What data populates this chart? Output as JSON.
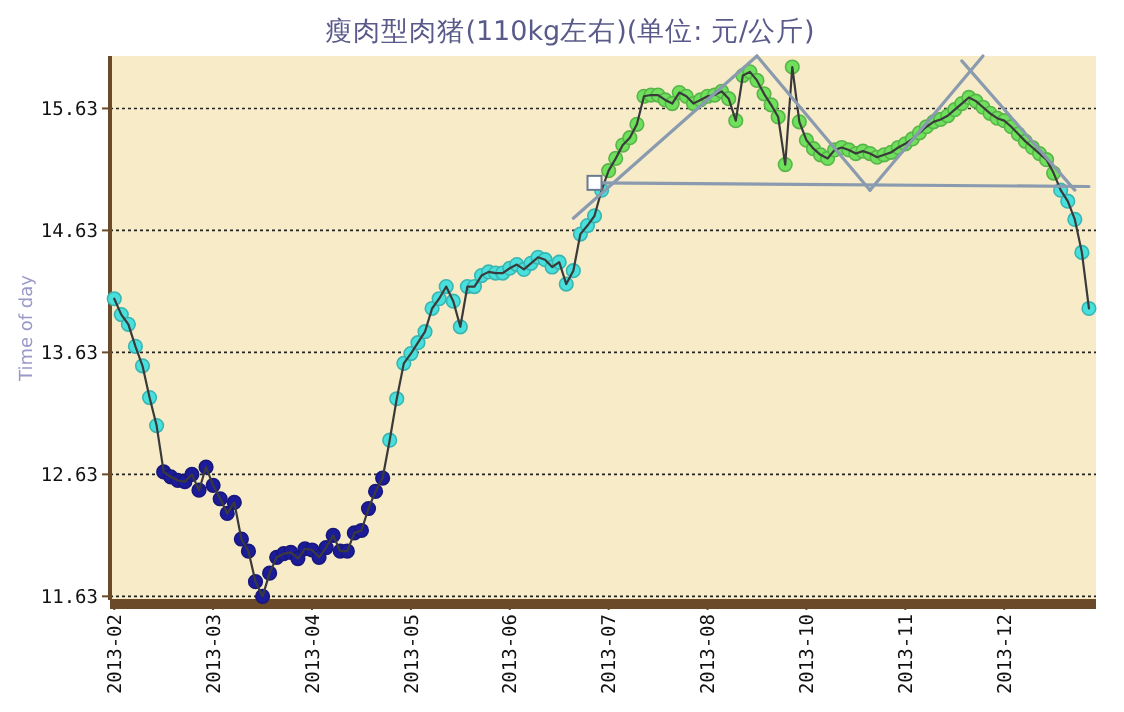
{
  "chart_data": {
    "type": "line",
    "title": "瘦肉型肉猪(110kg左右)(单位: 元/公斤)",
    "ylabel": "Time of day",
    "categories": [
      "2013-02",
      null,
      null,
      null,
      null,
      null,
      null,
      null,
      null,
      null,
      null,
      null,
      null,
      null,
      "2013-03",
      null,
      null,
      null,
      null,
      null,
      null,
      null,
      null,
      null,
      null,
      null,
      null,
      null,
      "2013-04",
      null,
      null,
      null,
      null,
      null,
      null,
      null,
      null,
      null,
      null,
      null,
      null,
      null,
      "2013-05",
      null,
      null,
      null,
      null,
      null,
      null,
      null,
      null,
      null,
      null,
      null,
      null,
      null,
      "2013-06",
      null,
      null,
      null,
      null,
      null,
      null,
      null,
      null,
      null,
      null,
      null,
      null,
      null,
      "2013-07",
      null,
      null,
      null,
      null,
      null,
      null,
      null,
      null,
      null,
      null,
      null,
      null,
      null,
      "2013-08",
      null,
      null,
      null,
      null,
      null,
      null,
      null,
      null,
      null,
      null,
      null,
      null,
      null,
      "2013-10",
      null,
      null,
      null,
      null,
      null,
      null,
      null,
      null,
      null,
      null,
      null,
      null,
      null,
      "2013-11",
      null,
      null,
      null,
      null,
      null,
      null,
      null,
      null,
      null,
      null,
      null,
      null,
      null,
      "2013-12",
      null,
      null,
      null,
      null,
      null,
      null,
      null,
      null,
      null,
      null,
      null,
      null
    ],
    "ylim": [
      11.6,
      16.06
    ],
    "yticks": [
      11.63,
      12.63,
      13.63,
      14.63,
      15.63
    ],
    "grid": "y",
    "series": [
      {
        "color": "#3a3a3a",
        "marker": "circle",
        "values": [
          14.07,
          13.94,
          13.86,
          13.68,
          13.52,
          13.26,
          13.03,
          12.65,
          12.61,
          12.58,
          12.57,
          12.63,
          12.5,
          12.69,
          12.54,
          12.43,
          12.31,
          12.4,
          12.1,
          12.0,
          11.75,
          11.63,
          11.82,
          11.95,
          11.98,
          11.99,
          11.94,
          12.02,
          12.01,
          11.95,
          12.03,
          12.13,
          12.0,
          12.0,
          12.15,
          12.17,
          12.35,
          12.49,
          12.6,
          12.91,
          13.25,
          13.54,
          13.62,
          13.71,
          13.8,
          13.99,
          14.07,
          14.17,
          14.05,
          13.84,
          14.17,
          14.17,
          14.26,
          14.29,
          14.28,
          14.28,
          14.32,
          14.35,
          14.31,
          14.36,
          14.41,
          14.39,
          14.33,
          14.37,
          14.19,
          14.3,
          14.6,
          14.67,
          14.75,
          14.96,
          15.12,
          15.22,
          15.33,
          15.39,
          15.5,
          15.73,
          15.74,
          15.74,
          15.7,
          15.67,
          15.76,
          15.73,
          15.67,
          15.7,
          15.73,
          15.74,
          15.77,
          15.71,
          15.53,
          15.9,
          15.93,
          15.86,
          15.75,
          15.66,
          15.56,
          15.17,
          15.97,
          15.52,
          15.37,
          15.3,
          15.25,
          15.22,
          15.29,
          15.31,
          15.29,
          15.26,
          15.28,
          15.26,
          15.23,
          15.25,
          15.27,
          15.31,
          15.34,
          15.38,
          15.43,
          15.48,
          15.52,
          15.54,
          15.57,
          15.62,
          15.67,
          15.72,
          15.69,
          15.64,
          15.59,
          15.55,
          15.53,
          15.48,
          15.42,
          15.36,
          15.31,
          15.26,
          15.21,
          15.1,
          14.96,
          14.87,
          14.72,
          14.45,
          13.99
        ],
        "colors": [
          "#48e0dc",
          "#48e0dc",
          "#48e0dc",
          "#48e0dc",
          "#48e0dc",
          "#48e0dc",
          "#48e0dc",
          "#1c1c9a",
          "#1c1c9a",
          "#1c1c9a",
          "#1c1c9a",
          "#1c1c9a",
          "#1c1c9a",
          "#1c1c9a",
          "#1c1c9a",
          "#1c1c9a",
          "#1c1c9a",
          "#1c1c9a",
          "#1c1c9a",
          "#1c1c9a",
          "#1c1c9a",
          "#1c1c9a",
          "#1c1c9a",
          "#1c1c9a",
          "#1c1c9a",
          "#1c1c9a",
          "#1c1c9a",
          "#1c1c9a",
          "#1c1c9a",
          "#1c1c9a",
          "#1c1c9a",
          "#1c1c9a",
          "#1c1c9a",
          "#1c1c9a",
          "#1c1c9a",
          "#1c1c9a",
          "#1c1c9a",
          "#1c1c9a",
          "#1c1c9a",
          "#48e0dc",
          "#48e0dc",
          "#48e0dc",
          "#48e0dc",
          "#48e0dc",
          "#48e0dc",
          "#48e0dc",
          "#48e0dc",
          "#48e0dc",
          "#48e0dc",
          "#48e0dc",
          "#48e0dc",
          "#48e0dc",
          "#48e0dc",
          "#48e0dc",
          "#48e0dc",
          "#48e0dc",
          "#48e0dc",
          "#48e0dc",
          "#48e0dc",
          "#48e0dc",
          "#48e0dc",
          "#48e0dc",
          "#48e0dc",
          "#48e0dc",
          "#48e0dc",
          "#48e0dc",
          "#48e0dc",
          "#48e0dc",
          "#48e0dc",
          "#48e0dc",
          "#6ee05c",
          "#6ee05c",
          "#6ee05c",
          "#6ee05c",
          "#6ee05c",
          "#6ee05c",
          "#6ee05c",
          "#6ee05c",
          "#6ee05c",
          "#6ee05c",
          "#6ee05c",
          "#6ee05c",
          "#6ee05c",
          "#6ee05c",
          "#6ee05c",
          "#6ee05c",
          "#6ee05c",
          "#6ee05c",
          "#6ee05c",
          "#6ee05c",
          "#6ee05c",
          "#6ee05c",
          "#6ee05c",
          "#6ee05c",
          "#6ee05c",
          "#6ee05c",
          "#6ee05c",
          "#6ee05c",
          "#6ee05c",
          "#6ee05c",
          "#6ee05c",
          "#6ee05c",
          "#6ee05c",
          "#6ee05c",
          "#6ee05c",
          "#6ee05c",
          "#6ee05c",
          "#6ee05c",
          "#6ee05c",
          "#6ee05c",
          "#6ee05c",
          "#6ee05c",
          "#6ee05c",
          "#6ee05c",
          "#6ee05c",
          "#6ee05c",
          "#6ee05c",
          "#6ee05c",
          "#6ee05c",
          "#6ee05c",
          "#6ee05c",
          "#6ee05c",
          "#6ee05c",
          "#6ee05c",
          "#6ee05c",
          "#6ee05c",
          "#6ee05c",
          "#6ee05c",
          "#6ee05c",
          "#6ee05c",
          "#6ee05c",
          "#6ee05c",
          "#6ee05c",
          "#6ee05c",
          "#48e0dc",
          "#48e0dc",
          "#48e0dc",
          "#48e0dc",
          "#48e0dc"
        ]
      },
      {
        "color": "#8a9bb0",
        "marker": "none",
        "values": [
          null,
          null,
          null,
          null,
          null,
          null,
          null,
          null,
          null,
          null,
          null,
          null,
          null,
          null,
          null,
          null,
          null,
          null,
          null,
          null,
          null,
          null,
          null,
          null,
          null,
          null,
          null,
          null,
          null,
          null,
          null,
          null,
          null,
          null,
          null,
          null,
          null,
          null,
          null,
          null,
          null,
          null,
          null,
          null,
          null,
          null,
          null,
          null,
          null,
          null,
          null,
          null,
          null,
          null,
          null,
          null,
          null,
          null,
          null,
          null,
          null,
          null,
          null,
          null,
          null,
          null,
          null,
          null,
          15.02,
          null,
          null,
          null,
          null,
          null,
          null,
          null,
          null,
          null,
          null,
          null,
          null,
          null,
          null,
          null,
          null,
          null,
          null,
          null,
          null,
          null,
          null,
          null,
          null,
          null,
          null,
          null,
          null,
          null,
          null,
          null,
          null,
          null,
          null,
          null,
          null,
          null,
          null,
          null,
          null,
          null,
          null,
          null,
          null,
          null,
          null,
          null,
          null,
          null,
          null,
          null,
          null,
          null,
          null,
          null,
          null,
          null,
          null,
          null,
          null,
          null,
          null,
          null,
          null,
          null,
          null,
          null,
          null,
          null,
          14.99
        ]
      },
      {
        "color": "#8a9bb0",
        "marker": "none",
        "values": [
          null,
          null,
          null,
          null,
          null,
          null,
          null,
          null,
          null,
          null,
          null,
          null,
          null,
          null,
          null,
          null,
          null,
          null,
          null,
          null,
          null,
          null,
          null,
          null,
          null,
          null,
          null,
          null,
          null,
          null,
          null,
          null,
          null,
          null,
          null,
          null,
          null,
          null,
          null,
          null,
          null,
          null,
          null,
          null,
          null,
          null,
          null,
          null,
          null,
          null,
          null,
          null,
          null,
          null,
          null,
          null,
          null,
          null,
          null,
          null,
          null,
          null,
          null,
          null,
          null,
          14.73,
          null,
          null,
          null,
          null,
          null,
          null,
          null,
          null,
          null,
          null,
          null,
          null,
          null,
          null,
          null,
          null,
          null,
          null,
          null,
          null,
          null,
          null,
          null,
          null,
          null,
          16.06,
          null,
          null,
          null,
          null,
          null,
          null,
          null,
          null,
          null,
          null,
          null,
          null,
          null,
          null,
          null,
          null,
          null,
          null,
          null,
          null,
          null,
          null,
          null,
          null,
          null,
          null,
          null,
          null,
          null,
          null,
          null,
          null,
          null,
          null,
          null,
          null,
          null,
          null,
          null,
          null,
          null,
          null,
          null,
          null,
          null,
          null,
          null
        ]
      },
      {
        "color": "#8a9bb0",
        "marker": "none",
        "values": [
          null,
          null,
          null,
          null,
          null,
          null,
          null,
          null,
          null,
          null,
          null,
          null,
          null,
          null,
          null,
          null,
          null,
          null,
          null,
          null,
          null,
          null,
          null,
          null,
          null,
          null,
          null,
          null,
          null,
          null,
          null,
          null,
          null,
          null,
          null,
          null,
          null,
          null,
          null,
          null,
          null,
          null,
          null,
          null,
          null,
          null,
          null,
          null,
          null,
          null,
          null,
          null,
          null,
          null,
          null,
          null,
          null,
          null,
          null,
          null,
          null,
          null,
          null,
          null,
          null,
          null,
          null,
          null,
          null,
          null,
          null,
          null,
          null,
          null,
          null,
          null,
          null,
          null,
          null,
          null,
          null,
          null,
          null,
          null,
          null,
          null,
          null,
          null,
          null,
          null,
          null,
          16.06,
          null,
          null,
          null,
          null,
          null,
          null,
          null,
          null,
          null,
          null,
          null,
          null,
          null,
          null,
          null,
          14.96,
          null,
          null,
          null,
          null,
          null,
          null,
          null,
          null,
          null,
          null,
          null,
          null,
          null,
          null,
          null,
          null,
          null,
          null,
          null,
          null,
          null,
          null,
          null,
          null,
          null,
          null,
          null,
          null,
          null,
          null,
          null
        ]
      },
      {
        "color": "#8a9bb0",
        "marker": "none",
        "values": [
          null,
          null,
          null,
          null,
          null,
          null,
          null,
          null,
          null,
          null,
          null,
          null,
          null,
          null,
          null,
          null,
          null,
          null,
          null,
          null,
          null,
          null,
          null,
          null,
          null,
          null,
          null,
          null,
          null,
          null,
          null,
          null,
          null,
          null,
          null,
          null,
          null,
          null,
          null,
          null,
          null,
          null,
          null,
          null,
          null,
          null,
          null,
          null,
          null,
          null,
          null,
          null,
          null,
          null,
          null,
          null,
          null,
          null,
          null,
          null,
          null,
          null,
          null,
          null,
          null,
          null,
          null,
          null,
          null,
          null,
          null,
          null,
          null,
          null,
          null,
          null,
          null,
          null,
          null,
          null,
          null,
          null,
          null,
          null,
          null,
          null,
          null,
          null,
          null,
          null,
          null,
          null,
          null,
          null,
          null,
          null,
          null,
          null,
          null,
          null,
          null,
          null,
          null,
          null,
          null,
          null,
          null,
          14.96,
          null,
          null,
          null,
          null,
          null,
          null,
          null,
          null,
          null,
          null,
          null,
          null,
          null,
          null,
          null,
          16.06,
          null,
          null,
          null,
          null,
          null,
          null,
          null,
          null,
          null,
          null,
          null,
          null,
          null,
          null,
          null
        ]
      },
      {
        "color": "#8a9bb0",
        "marker": "none",
        "values": [
          null,
          null,
          null,
          null,
          null,
          null,
          null,
          null,
          null,
          null,
          null,
          null,
          null,
          null,
          null,
          null,
          null,
          null,
          null,
          null,
          null,
          null,
          null,
          null,
          null,
          null,
          null,
          null,
          null,
          null,
          null,
          null,
          null,
          null,
          null,
          null,
          null,
          null,
          null,
          null,
          null,
          null,
          null,
          null,
          null,
          null,
          null,
          null,
          null,
          null,
          null,
          null,
          null,
          null,
          null,
          null,
          null,
          null,
          null,
          null,
          null,
          null,
          null,
          null,
          null,
          null,
          null,
          null,
          null,
          null,
          null,
          null,
          null,
          null,
          null,
          null,
          null,
          null,
          null,
          null,
          null,
          null,
          null,
          null,
          null,
          null,
          null,
          null,
          null,
          null,
          null,
          null,
          null,
          null,
          null,
          null,
          null,
          null,
          null,
          null,
          null,
          null,
          null,
          null,
          null,
          null,
          null,
          null,
          null,
          null,
          null,
          null,
          null,
          null,
          null,
          null,
          null,
          null,
          null,
          null,
          16.02,
          null,
          null,
          null,
          null,
          null,
          null,
          null,
          null,
          null,
          null,
          null,
          null,
          null,
          null,
          null,
          14.96,
          null,
          null
        ]
      },
      {
        "type": "scatter",
        "color": "#ffffff",
        "marker": "square",
        "values": [
          null,
          null,
          null,
          null,
          null,
          null,
          null,
          null,
          null,
          null,
          null,
          null,
          null,
          null,
          null,
          null,
          null,
          null,
          null,
          null,
          null,
          null,
          null,
          null,
          null,
          null,
          null,
          null,
          null,
          null,
          null,
          null,
          null,
          null,
          null,
          null,
          null,
          null,
          null,
          null,
          null,
          null,
          null,
          null,
          null,
          null,
          null,
          null,
          null,
          null,
          null,
          null,
          null,
          null,
          null,
          null,
          null,
          null,
          null,
          null,
          null,
          null,
          null,
          null,
          null,
          null,
          null,
          null,
          15.02,
          null,
          null,
          null,
          null,
          null,
          null,
          null,
          null,
          null,
          null,
          null,
          null,
          null,
          null,
          null,
          null,
          null,
          null,
          null,
          null,
          null,
          null,
          null,
          null,
          null,
          null,
          null,
          null,
          null,
          null,
          null,
          null,
          null,
          null,
          null,
          null,
          null,
          null,
          null,
          null,
          null,
          null,
          null,
          null,
          null,
          null,
          null,
          null,
          null,
          null,
          null,
          null,
          null,
          null,
          null,
          null,
          null,
          null,
          null,
          null,
          null,
          null,
          null,
          null,
          null,
          null,
          null,
          null,
          null,
          null
        ]
      }
    ]
  }
}
